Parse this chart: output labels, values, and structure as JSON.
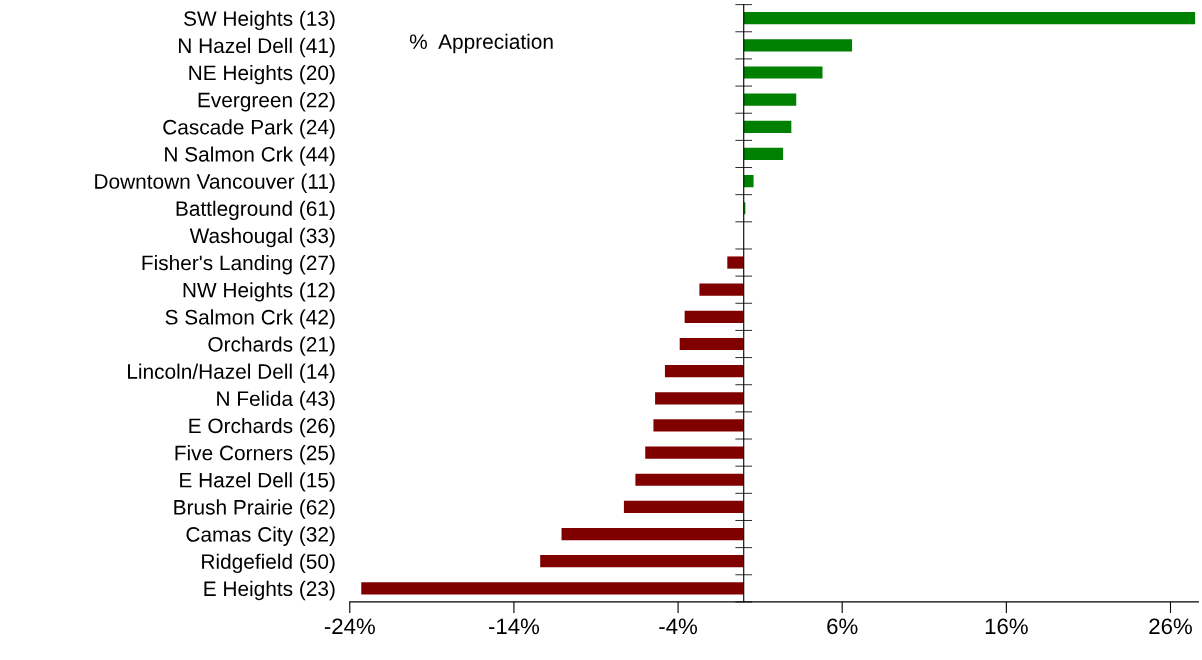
{
  "chart_data": {
    "type": "bar",
    "orientation": "horizontal",
    "annotations": [
      "%  Appreciation"
    ],
    "categories": [
      "SW Heights (13)",
      "N Hazel Dell (41)",
      "NE Heights (20)",
      "Evergreen (22)",
      "Cascade Park (24)",
      "N Salmon Crk (44)",
      "Downtown Vancouver (11)",
      "Battleground (61)",
      "Washougal (33)",
      "Fisher's Landing (27)",
      "NW Heights (12)",
      "S Salmon Crk (42)",
      "Orchards (21)",
      "Lincoln/Hazel Dell (14)",
      "N Felida (43)",
      "E Orchards (26)",
      "Five Corners (25)",
      "E Hazel Dell (15)",
      "Brush Prairie (62)",
      "Camas City (32)",
      "Ridgefield (50)",
      "E Heights (23)"
    ],
    "values": [
      27.5,
      6.6,
      4.8,
      3.2,
      2.9,
      2.4,
      0.6,
      0.1,
      0,
      -1.0,
      -2.7,
      -3.6,
      -3.9,
      -4.8,
      -5.4,
      -5.5,
      -6.0,
      -6.6,
      -7.3,
      -11.1,
      -12.4,
      -23.3
    ],
    "colors": [
      "#008000",
      "#008000",
      "#008000",
      "#008000",
      "#008000",
      "#008000",
      "#008000",
      "#008000",
      "#008000",
      "#800000",
      "#800000",
      "#800000",
      "#800000",
      "#800000",
      "#800000",
      "#800000",
      "#800000",
      "#800000",
      "#800000",
      "#800000",
      "#800000",
      "#800000"
    ],
    "xlim": [
      -24,
      27.7
    ],
    "xticks": [
      {
        "value": -24,
        "label": "-24%"
      },
      {
        "value": -14,
        "label": "-14%"
      },
      {
        "value": -4,
        "label": "-4%"
      },
      {
        "value": 6,
        "label": "6%"
      },
      {
        "value": 16,
        "label": "16%"
      },
      {
        "value": 26,
        "label": "26%"
      }
    ],
    "grid": false,
    "legend": false
  }
}
